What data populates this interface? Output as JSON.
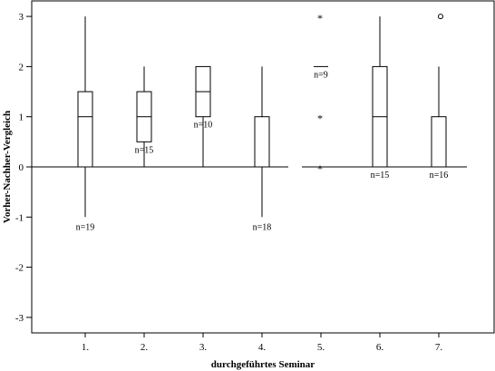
{
  "chart_data": {
    "type": "box",
    "title": "",
    "xlabel": "durchgeführtes Seminar",
    "ylabel": "Vorher-Nachher-Vergleich",
    "categories": [
      "1.",
      "2.",
      "3.",
      "4.",
      "5.",
      "6.",
      "7."
    ],
    "yticks": [
      3,
      2,
      1,
      0,
      -1,
      -2,
      -3
    ],
    "ylim": [
      -3.3,
      3.3
    ],
    "reference_line": 0,
    "grid": false,
    "legend": "none",
    "boxes": [
      {
        "category": "1.",
        "whisker_low": -1,
        "q1": 0,
        "median": 1,
        "q3": 1.5,
        "whisker_high": 3,
        "outliers": [],
        "extremes": [],
        "n_label": "n=19"
      },
      {
        "category": "2.",
        "whisker_low": 0,
        "q1": 0.5,
        "median": 1,
        "q3": 1.5,
        "whisker_high": 2,
        "outliers": [],
        "extremes": [],
        "n_label": "n=15"
      },
      {
        "category": "3.",
        "whisker_low": 0,
        "q1": 1,
        "median": 1.5,
        "q3": 2,
        "whisker_high": 2,
        "outliers": [],
        "extremes": [],
        "n_label": "n=10"
      },
      {
        "category": "4.",
        "whisker_low": -1,
        "q1": 0,
        "median": 0,
        "q3": 1,
        "whisker_high": 2,
        "outliers": [],
        "extremes": [],
        "n_label": "n=18"
      },
      {
        "category": "5.",
        "whisker_low": 2,
        "q1": 2,
        "median": 2,
        "q3": 2,
        "whisker_high": 2,
        "outliers": [],
        "extremes": [
          3,
          1,
          0
        ],
        "n_label": "n=9"
      },
      {
        "category": "6.",
        "whisker_low": 0,
        "q1": 0,
        "median": 1,
        "q3": 2,
        "whisker_high": 3,
        "outliers": [],
        "extremes": [],
        "n_label": "n=15"
      },
      {
        "category": "7.",
        "whisker_low": 0,
        "q1": 0,
        "median": 0,
        "q3": 1,
        "whisker_high": 2,
        "outliers": [
          3
        ],
        "extremes": [],
        "n_label": "n=16"
      }
    ]
  }
}
